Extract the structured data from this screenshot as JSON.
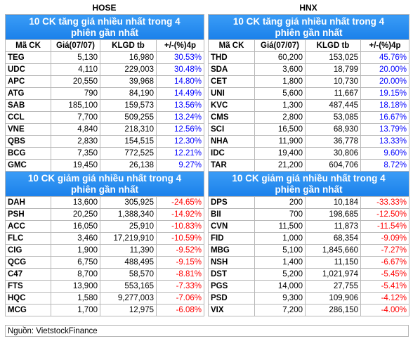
{
  "source": "Nguồn: VietstockFinance",
  "columns": [
    "Mã CK",
    "Giá(07/07)",
    "KLGD tb",
    "+/-(%)4p"
  ],
  "panels": [
    {
      "exchange": "HOSE",
      "up": {
        "title": "10 CK tăng giá nhiều nhất trong 4 phiên gần nhất",
        "rows": [
          [
            "TEG",
            "5,130",
            "16,980",
            "30.53%"
          ],
          [
            "UDC",
            "4,110",
            "229,003",
            "30.48%"
          ],
          [
            "APC",
            "20,550",
            "39,968",
            "14.80%"
          ],
          [
            "ATG",
            "790",
            "84,190",
            "14.49%"
          ],
          [
            "SAB",
            "185,100",
            "159,573",
            "13.56%"
          ],
          [
            "CCL",
            "7,700",
            "509,255",
            "13.24%"
          ],
          [
            "VNE",
            "4,840",
            "218,310",
            "12.56%"
          ],
          [
            "QBS",
            "2,830",
            "154,515",
            "12.30%"
          ],
          [
            "BCG",
            "7,350",
            "772,525",
            "12.21%"
          ],
          [
            "GMC",
            "19,450",
            "26,138",
            "9.27%"
          ]
        ]
      },
      "down": {
        "title": "10 CK giảm giá nhiều nhất trong 4 phiên gần nhất",
        "rows": [
          [
            "DAH",
            "13,600",
            "305,925",
            "-24.65%"
          ],
          [
            "PSH",
            "20,250",
            "1,388,340",
            "-14.92%"
          ],
          [
            "ACC",
            "16,050",
            "25,910",
            "-10.83%"
          ],
          [
            "FLC",
            "3,460",
            "17,219,910",
            "-10.59%"
          ],
          [
            "CIG",
            "1,900",
            "11,390",
            "-9.52%"
          ],
          [
            "QCG",
            "6,750",
            "488,495",
            "-9.15%"
          ],
          [
            "C47",
            "8,700",
            "58,570",
            "-8.81%"
          ],
          [
            "FTS",
            "13,900",
            "553,165",
            "-7.33%"
          ],
          [
            "HQC",
            "1,580",
            "9,277,003",
            "-7.06%"
          ],
          [
            "MCG",
            "1,700",
            "12,975",
            "-6.08%"
          ]
        ]
      }
    },
    {
      "exchange": "HNX",
      "up": {
        "title": "10 CK tăng giá nhiều nhất trong 4 phiên gần nhất",
        "rows": [
          [
            "THD",
            "60,200",
            "153,025",
            "45.76%"
          ],
          [
            "SDA",
            "3,600",
            "18,799",
            "20.00%"
          ],
          [
            "CET",
            "1,800",
            "10,730",
            "20.00%"
          ],
          [
            "UNI",
            "5,600",
            "11,667",
            "19.15%"
          ],
          [
            "KVC",
            "1,300",
            "487,445",
            "18.18%"
          ],
          [
            "CMS",
            "2,800",
            "53,085",
            "16.67%"
          ],
          [
            "SCI",
            "16,500",
            "68,930",
            "13.79%"
          ],
          [
            "NHA",
            "11,900",
            "36,778",
            "13.33%"
          ],
          [
            "IDC",
            "19,400",
            "30,806",
            "9.60%"
          ],
          [
            "TAR",
            "21,200",
            "604,706",
            "8.72%"
          ]
        ]
      },
      "down": {
        "title": "10 CK giảm giá nhiều nhất trong 4 phiên gần nhất",
        "rows": [
          [
            "DPS",
            "200",
            "10,184",
            "-33.33%"
          ],
          [
            "BII",
            "700",
            "198,685",
            "-12.50%"
          ],
          [
            "CVN",
            "11,500",
            "11,873",
            "-11.54%"
          ],
          [
            "FID",
            "1,000",
            "68,354",
            "-9.09%"
          ],
          [
            "MBG",
            "5,100",
            "1,845,660",
            "-7.27%"
          ],
          [
            "NSH",
            "1,400",
            "11,150",
            "-6.67%"
          ],
          [
            "DST",
            "5,200",
            "1,021,974",
            "-5.45%"
          ],
          [
            "PGS",
            "14,000",
            "27,755",
            "-5.41%"
          ],
          [
            "PSD",
            "9,300",
            "109,906",
            "-4.12%"
          ],
          [
            "VIX",
            "7,200",
            "286,150",
            "-4.00%"
          ]
        ]
      }
    }
  ]
}
